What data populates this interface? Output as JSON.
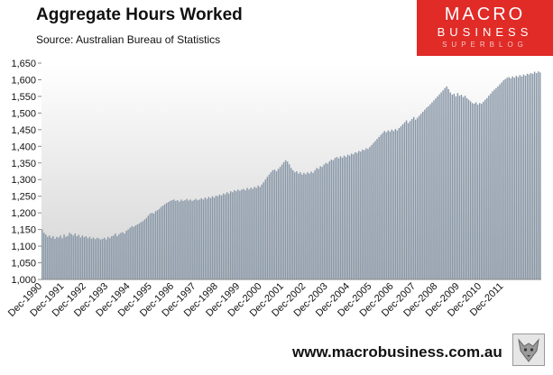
{
  "brand": {
    "word1": "MACRO",
    "word2": "BUSINESS",
    "word3": "SUPERBLOG"
  },
  "footer": {
    "url": "www.macrobusiness.com.au"
  },
  "colors": {
    "bar": "#8796a6",
    "bar_edge": "#6f7f91",
    "plot_bg_top": "#ffffff",
    "plot_bg_bottom": "#d4d4d4",
    "brand_red": "#e02b27"
  },
  "chart_data": {
    "type": "bar",
    "title": "Aggregate Hours Worked",
    "subtitle": "Source: Australian Bureau of Statistics",
    "ylim": [
      1000,
      1650
    ],
    "y_ticks": [
      1000,
      1050,
      1100,
      1150,
      1200,
      1250,
      1300,
      1350,
      1400,
      1450,
      1500,
      1550,
      1600,
      1650
    ],
    "y_tick_labels": [
      "1,000",
      "1,050",
      "1,100",
      "1,150",
      "1,200",
      "1,250",
      "1,300",
      "1,350",
      "1,400",
      "1,450",
      "1,500",
      "1,550",
      "1,600",
      "1,650"
    ],
    "x_tick_labels": [
      "Dec-1990",
      "Dec-1991",
      "Dec-1992",
      "Dec-1993",
      "Dec-1994",
      "Dec-1995",
      "Dec-1996",
      "Dec-1997",
      "Dec-1998",
      "Dec-1999",
      "Dec-2000",
      "Dec-2001",
      "Dec-2002",
      "Dec-2003",
      "Dec-2004",
      "Dec-2005",
      "Dec-2006",
      "Dec-2007",
      "Dec-2008",
      "Dec-2009",
      "Dec-2010",
      "Dec-2011"
    ],
    "grid": false,
    "legend": "none",
    "x_start": "Dec-1990",
    "frequency": "monthly",
    "values": [
      1150,
      1140,
      1135,
      1128,
      1132,
      1125,
      1130,
      1122,
      1128,
      1126,
      1132,
      1124,
      1135,
      1128,
      1131,
      1140,
      1136,
      1132,
      1138,
      1130,
      1134,
      1126,
      1132,
      1127,
      1130,
      1124,
      1128,
      1122,
      1126,
      1121,
      1125,
      1123,
      1120,
      1122,
      1125,
      1120,
      1128,
      1124,
      1130,
      1132,
      1138,
      1130,
      1136,
      1140,
      1142,
      1138,
      1146,
      1150,
      1155,
      1160,
      1158,
      1162,
      1165,
      1168,
      1172,
      1175,
      1180,
      1185,
      1192,
      1198,
      1200,
      1198,
      1205,
      1208,
      1212,
      1218,
      1222,
      1226,
      1230,
      1233,
      1236,
      1238,
      1240,
      1236,
      1238,
      1234,
      1240,
      1236,
      1238,
      1242,
      1237,
      1240,
      1236,
      1239,
      1242,
      1238,
      1240,
      1244,
      1240,
      1246,
      1242,
      1248,
      1244,
      1250,
      1246,
      1252,
      1250,
      1255,
      1252,
      1258,
      1256,
      1262,
      1258,
      1265,
      1262,
      1268,
      1265,
      1270,
      1266,
      1270,
      1272,
      1268,
      1275,
      1270,
      1276,
      1272,
      1278,
      1275,
      1282,
      1278,
      1285,
      1292,
      1300,
      1308,
      1315,
      1322,
      1328,
      1330,
      1325,
      1332,
      1338,
      1345,
      1352,
      1358,
      1354,
      1346,
      1335,
      1328,
      1322,
      1325,
      1318,
      1322,
      1315,
      1320,
      1316,
      1322,
      1318,
      1324,
      1320,
      1328,
      1335,
      1332,
      1340,
      1338,
      1345,
      1350,
      1348,
      1355,
      1360,
      1358,
      1365,
      1368,
      1364,
      1370,
      1366,
      1372,
      1368,
      1375,
      1372,
      1378,
      1376,
      1382,
      1380,
      1386,
      1384,
      1390,
      1388,
      1394,
      1392,
      1398,
      1404,
      1410,
      1416,
      1422,
      1428,
      1434,
      1440,
      1446,
      1442,
      1448,
      1444,
      1450,
      1446,
      1452,
      1448,
      1455,
      1460,
      1466,
      1472,
      1478,
      1470,
      1476,
      1482,
      1488,
      1480,
      1486,
      1492,
      1498,
      1504,
      1510,
      1516,
      1520,
      1526,
      1532,
      1538,
      1544,
      1550,
      1556,
      1562,
      1568,
      1575,
      1580,
      1572,
      1562,
      1555,
      1558,
      1550,
      1560,
      1552,
      1555,
      1548,
      1552,
      1545,
      1540,
      1535,
      1530,
      1528,
      1532,
      1525,
      1530,
      1528,
      1534,
      1540,
      1545,
      1552,
      1558,
      1565,
      1570,
      1575,
      1580,
      1586,
      1592,
      1598,
      1602,
      1606,
      1608,
      1604,
      1610,
      1606,
      1612,
      1608,
      1614,
      1610,
      1616,
      1612,
      1618,
      1616,
      1620,
      1618,
      1624,
      1620,
      1625,
      1622
    ]
  }
}
